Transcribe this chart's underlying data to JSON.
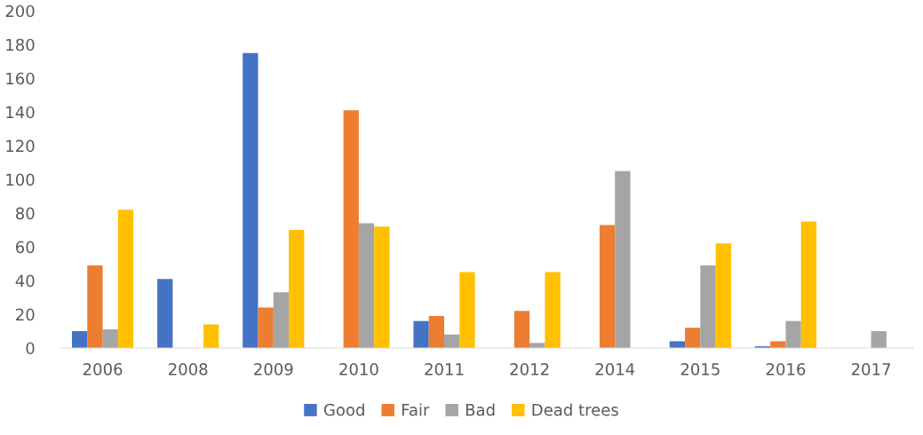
{
  "chart_data": {
    "type": "bar",
    "categories": [
      "2006",
      "2008",
      "2009",
      "2010",
      "2011",
      "2012",
      "2014",
      "2015",
      "2016",
      "2017"
    ],
    "series": [
      {
        "name": "Good",
        "color": "#4472c4",
        "values": [
          10,
          41,
          175,
          null,
          16,
          null,
          null,
          4,
          1,
          null
        ]
      },
      {
        "name": "Fair",
        "color": "#ed7d31",
        "values": [
          49,
          null,
          24,
          141,
          19,
          22,
          73,
          12,
          4,
          null
        ]
      },
      {
        "name": "Bad",
        "color": "#a5a5a5",
        "values": [
          11,
          null,
          33,
          74,
          8,
          3,
          105,
          49,
          16,
          10
        ]
      },
      {
        "name": "Dead trees",
        "color": "#ffc000",
        "values": [
          82,
          14,
          70,
          72,
          45,
          45,
          null,
          62,
          75,
          null
        ]
      }
    ],
    "ylim": [
      0,
      200
    ],
    "yticks": [
      0,
      20,
      40,
      60,
      80,
      100,
      120,
      140,
      160,
      180,
      200
    ],
    "grid": false,
    "legend": "bottom"
  }
}
